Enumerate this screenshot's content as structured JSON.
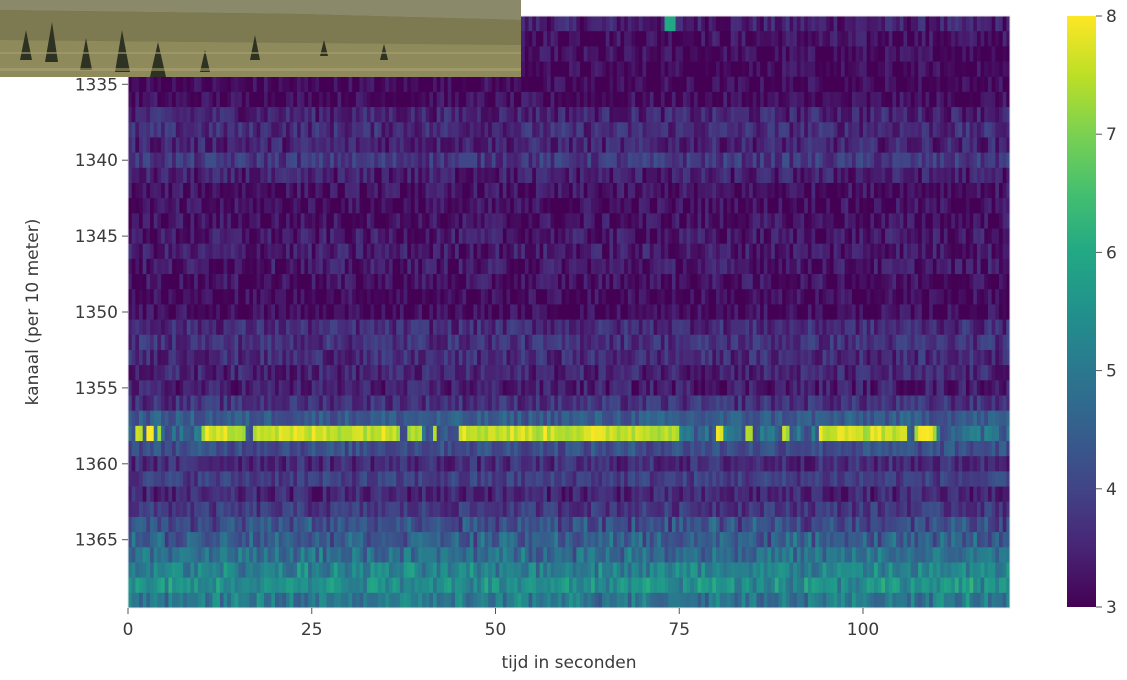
{
  "chart_data": {
    "type": "heatmap",
    "xlabel": "tijd in seconden",
    "ylabel": "kanaal (per 10 meter)",
    "xlim": [
      0,
      120
    ],
    "ylim": [
      1369.5,
      1330.5
    ],
    "xticks": [
      "0",
      "25",
      "50",
      "75",
      "100"
    ],
    "xtick_values": [
      0,
      25,
      50,
      75,
      100
    ],
    "yticks": [
      "1335",
      "1340",
      "1345",
      "1350",
      "1355",
      "1360",
      "1365"
    ],
    "ytick_values": [
      1335,
      1340,
      1345,
      1350,
      1355,
      1360,
      1365
    ],
    "colorbar": {
      "min": 3,
      "max": 8,
      "ticks": [
        "3",
        "4",
        "5",
        "6",
        "7",
        "8"
      ],
      "tick_values": [
        3,
        4,
        5,
        6,
        7,
        8
      ],
      "colormap": "viridis"
    },
    "channel_profile": [
      {
        "channel": 1331,
        "value": 3.4
      },
      {
        "channel": 1332,
        "value": 3.2
      },
      {
        "channel": 1333,
        "value": 3.1
      },
      {
        "channel": 1334,
        "value": 3.05
      },
      {
        "channel": 1335,
        "value": 3.05
      },
      {
        "channel": 1336,
        "value": 3.1
      },
      {
        "channel": 1337,
        "value": 3.5
      },
      {
        "channel": 1338,
        "value": 3.6
      },
      {
        "channel": 1339,
        "value": 3.5
      },
      {
        "channel": 1340,
        "value": 3.8
      },
      {
        "channel": 1341,
        "value": 3.4
      },
      {
        "channel": 1342,
        "value": 3.2
      },
      {
        "channel": 1343,
        "value": 3.15
      },
      {
        "channel": 1344,
        "value": 3.2
      },
      {
        "channel": 1345,
        "value": 3.3
      },
      {
        "channel": 1346,
        "value": 3.35
      },
      {
        "channel": 1347,
        "value": 3.3
      },
      {
        "channel": 1348,
        "value": 3.2
      },
      {
        "channel": 1349,
        "value": 3.1
      },
      {
        "channel": 1350,
        "value": 3.1
      },
      {
        "channel": 1351,
        "value": 3.6
      },
      {
        "channel": 1352,
        "value": 3.7
      },
      {
        "channel": 1353,
        "value": 3.6
      },
      {
        "channel": 1354,
        "value": 3.5
      },
      {
        "channel": 1355,
        "value": 3.4
      },
      {
        "channel": 1356,
        "value": 3.7
      },
      {
        "channel": 1357,
        "value": 4.4
      },
      {
        "channel": 1358,
        "value": 7.3
      },
      {
        "channel": 1359,
        "value": 4.2
      },
      {
        "channel": 1360,
        "value": 3.6
      },
      {
        "channel": 1361,
        "value": 3.9
      },
      {
        "channel": 1362,
        "value": 3.5
      },
      {
        "channel": 1363,
        "value": 3.8
      },
      {
        "channel": 1364,
        "value": 4.2
      },
      {
        "channel": 1365,
        "value": 4.5
      },
      {
        "channel": 1366,
        "value": 4.8
      },
      {
        "channel": 1367,
        "value": 5.2
      },
      {
        "channel": 1368,
        "value": 5.5
      },
      {
        "channel": 1369,
        "value": 5.0
      }
    ],
    "hot_channel": 1358,
    "hot_segments_seconds": [
      [
        1,
        1.6
      ],
      [
        2.5,
        3.2
      ],
      [
        4,
        4.5
      ],
      [
        10,
        16
      ],
      [
        17,
        37
      ],
      [
        38,
        40
      ],
      [
        41.5,
        42
      ],
      [
        45,
        75
      ],
      [
        80,
        81
      ],
      [
        84,
        85
      ],
      [
        89,
        90
      ],
      [
        94,
        106
      ],
      [
        107,
        110
      ]
    ],
    "top_hotspot": {
      "time": 73.5,
      "channel": 1331,
      "value": 6.0
    }
  }
}
